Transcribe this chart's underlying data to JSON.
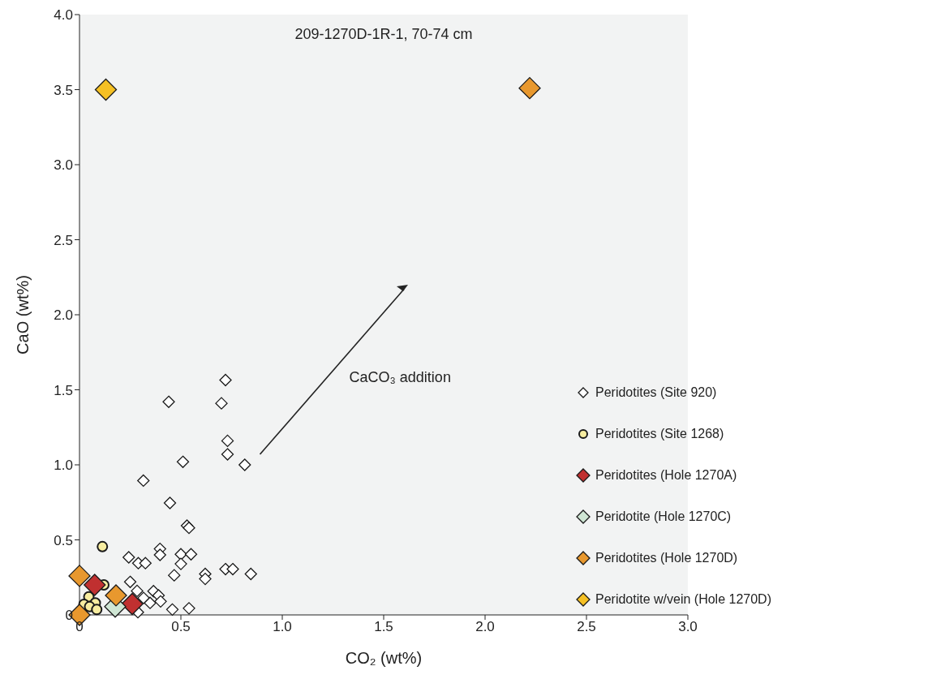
{
  "chart_data": {
    "type": "scatter",
    "title": "209-1270D-1R-1, 70-74 cm",
    "xlabel": "CO₂ (wt%)",
    "ylabel": "CaO (wt%)",
    "xlim": [
      0,
      3
    ],
    "xticks": [
      0,
      0.5,
      {
        "value": 1,
        "label": "1.0"
      },
      1.5,
      {
        "value": 2,
        "label": "2.0"
      },
      2.5,
      {
        "value": 3,
        "label": "3.0"
      }
    ],
    "ylim": [
      0,
      4
    ],
    "yticks": [
      0,
      0.5,
      {
        "value": 1,
        "label": "1.0"
      },
      1.5,
      {
        "value": 2,
        "label": "2.0"
      },
      2.5,
      {
        "value": 3,
        "label": "3.0"
      },
      3.5,
      {
        "value": 4,
        "label": "4.0"
      }
    ],
    "legend": "right",
    "annotations": [
      "CaCO₃ addition"
    ],
    "series": [
      {
        "name": "Peridotites (Site 920)",
        "color": "#ffffff",
        "marker": "diamond",
        "x": [
          0.72,
          0.44,
          0.7,
          0.73,
          0.73,
          0.51,
          0.815,
          0.315,
          0.446,
          0.53,
          0.54,
          0.243,
          0.29,
          0.325,
          0.397,
          0.397,
          0.5,
          0.55,
          0.5,
          0.467,
          0.62,
          0.62,
          0.72,
          0.756,
          0.845,
          0.25,
          0.284,
          0.365,
          0.39,
          0.316,
          0.348,
          0.4,
          0.288,
          0.458,
          0.54
        ],
        "values": [
          1.565,
          1.42,
          1.41,
          1.16,
          1.07,
          1.02,
          1.0,
          0.895,
          0.746,
          0.595,
          0.58,
          0.384,
          0.345,
          0.345,
          0.44,
          0.4,
          0.404,
          0.404,
          0.34,
          0.264,
          0.273,
          0.24,
          0.305,
          0.305,
          0.273,
          0.22,
          0.16,
          0.158,
          0.13,
          0.113,
          0.08,
          0.09,
          0.018,
          0.036,
          0.044
        ]
      },
      {
        "name": "Peridotites (Site 1268)",
        "color": "#f7eda0",
        "marker": "circle",
        "x": [
          0.113,
          0.12,
          0.046,
          0.078,
          0.022,
          0.05,
          0.085
        ],
        "values": [
          0.455,
          0.2,
          0.12,
          0.08,
          0.07,
          0.055,
          0.036
        ]
      },
      {
        "name": "Peridotites (Hole 1270A)",
        "color": "#c03030",
        "marker": "diamond",
        "x": [
          0.075,
          0.26
        ],
        "values": [
          0.2,
          0.073
        ]
      },
      {
        "name": "Peridotite (Hole 1270C)",
        "color": "#cfe6d4",
        "marker": "diamond",
        "x": [
          0.176
        ],
        "values": [
          0.055
        ]
      },
      {
        "name": "Peridotites (Hole 1270D)",
        "color": "#e8982e",
        "marker": "diamond",
        "x": [
          0,
          0,
          0.18,
          2.22
        ],
        "values": [
          0.26,
          0,
          0.13,
          3.51
        ]
      },
      {
        "name": "Peridotite w/vein (Hole 1270D)",
        "color": "#f5c024",
        "marker": "diamond",
        "x": [
          0.13
        ],
        "values": [
          3.5
        ]
      }
    ]
  }
}
